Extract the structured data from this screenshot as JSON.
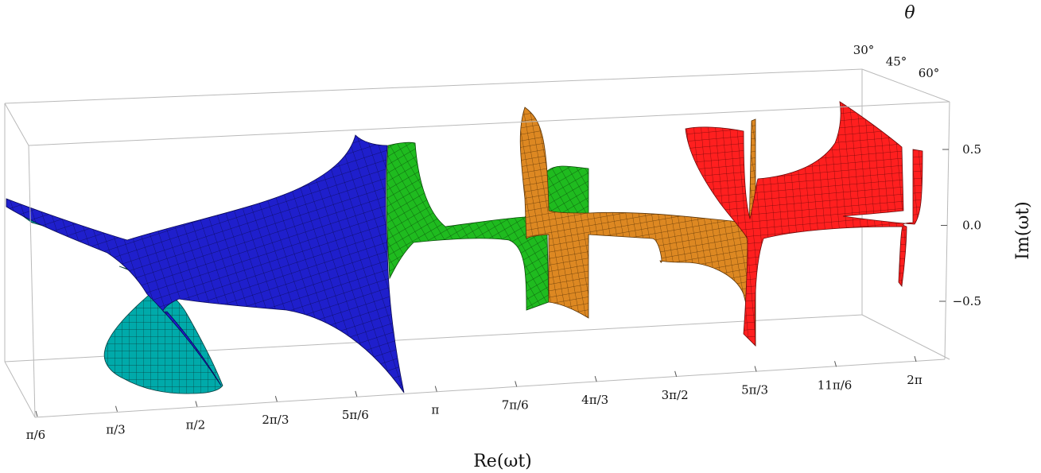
{
  "chart_data": {
    "type": "surface3d",
    "title": "",
    "x_axis": {
      "label": "Re(ωt)",
      "ticks": [
        "π/6",
        "π/3",
        "π/2",
        "2π/3",
        "5π/6",
        "π",
        "7π/6",
        "4π/3",
        "3π/2",
        "5π/3",
        "11π/6",
        "2π"
      ],
      "tick_values": [
        0.5236,
        1.0472,
        1.5708,
        2.0944,
        2.618,
        3.1416,
        3.6652,
        4.1888,
        4.7124,
        5.236,
        5.7596,
        6.2832
      ]
    },
    "y_axis": {
      "label": "θ",
      "ticks": [
        "30°",
        "45°",
        "60°"
      ],
      "tick_values": [
        30,
        45,
        60
      ]
    },
    "z_axis": {
      "label": "Im(ωt)",
      "ticks": [
        "0.5",
        "0.0",
        "−0.5"
      ],
      "tick_values": [
        0.5,
        0.0,
        -0.5
      ]
    },
    "series": [
      {
        "color": "#00aaaa",
        "x_range": [
          0.5236,
          1.6
        ]
      },
      {
        "color": "#1f1fcc",
        "x_range": [
          0.5236,
          2.7
        ]
      },
      {
        "color": "#1fbb1f",
        "x_range": [
          2.7,
          4.0
        ]
      },
      {
        "color": "#dd8822",
        "x_range": [
          3.6,
          5.3
        ]
      },
      {
        "color": "#ff1f1f",
        "x_range": [
          5.0,
          6.3
        ]
      }
    ]
  }
}
